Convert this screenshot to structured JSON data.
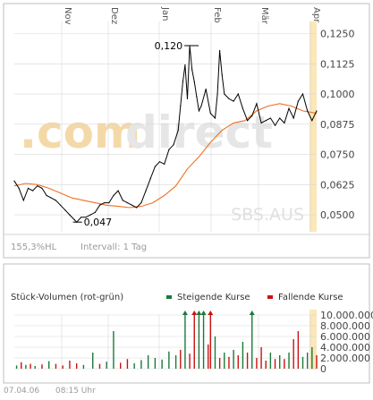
{
  "colors": {
    "price_line": "#000000",
    "avg_line": "#f07020",
    "rising": "#1a7a3a",
    "falling": "#cc1111",
    "highlight_strip": "#fbe7b8",
    "grid": "#d8d8d8",
    "frame": "#bfbfbf",
    "watermark_com": "#f4d9a8",
    "watermark_direct": "#e6e6e6"
  },
  "watermark": {
    "com": ".com",
    "direct": "direct",
    "exchange": "SBS.AUS"
  },
  "footer": {
    "hl_text": "155,3%HL",
    "interval_text": "Intervall: 1 Tag",
    "date": "07.04.06",
    "time": "08:15 Uhr"
  },
  "volume_panel": {
    "title": "Stück-Volumen (rot-grün)",
    "legend_rising": "Steigende Kurse",
    "legend_falling": "Fallende Kurse"
  },
  "chart_data": [
    {
      "type": "line",
      "x_ticks": [
        "Nov",
        "Dez",
        "Jan",
        "Feb",
        "Mär",
        "Apr"
      ],
      "y_ticks": [
        "0,1250",
        "0,1125",
        "0,1000",
        "0,0875",
        "0,0750",
        "0,0625",
        "0,0500"
      ],
      "ylim": [
        0.043,
        0.13
      ],
      "x_index_range": [
        0,
        131
      ],
      "annotations": [
        {
          "label": "0,120",
          "x_index": 76,
          "y": 0.12
        },
        {
          "label": "0,047",
          "x_index": 27,
          "y": 0.047
        }
      ],
      "series": [
        {
          "x_index": [
            0,
            2,
            4,
            6,
            8,
            10,
            12,
            14,
            16,
            18,
            20,
            22,
            24,
            26,
            27,
            29,
            31,
            33,
            35,
            37,
            39,
            41,
            43,
            45,
            47,
            49,
            51,
            53,
            55,
            57,
            59,
            61,
            63,
            65,
            67,
            69,
            71,
            72,
            73,
            74,
            75,
            76,
            77,
            78,
            79,
            80,
            81,
            83,
            85,
            87,
            88,
            89,
            90,
            91,
            93,
            95,
            97,
            99,
            101,
            103,
            105,
            107,
            109,
            111,
            113,
            115,
            117,
            119,
            121,
            123,
            125,
            127,
            129,
            131
          ],
          "values": [
            0.064,
            0.061,
            0.056,
            0.061,
            0.06,
            0.062,
            0.061,
            0.058,
            0.057,
            0.056,
            0.054,
            0.052,
            0.05,
            0.048,
            0.047,
            0.049,
            0.049,
            0.05,
            0.051,
            0.054,
            0.055,
            0.055,
            0.058,
            0.06,
            0.056,
            0.055,
            0.054,
            0.053,
            0.055,
            0.06,
            0.065,
            0.07,
            0.072,
            0.071,
            0.077,
            0.079,
            0.085,
            0.095,
            0.105,
            0.112,
            0.098,
            0.12,
            0.11,
            0.105,
            0.099,
            0.093,
            0.095,
            0.102,
            0.092,
            0.09,
            0.1,
            0.118,
            0.108,
            0.1,
            0.098,
            0.097,
            0.1,
            0.094,
            0.089,
            0.091,
            0.096,
            0.088,
            0.089,
            0.09,
            0.087,
            0.09,
            0.088,
            0.094,
            0.09,
            0.097,
            0.1,
            0.093,
            0.089,
            0.093
          ]
        },
        {
          "x_index": [
            0,
            5,
            10,
            15,
            20,
            25,
            30,
            35,
            40,
            45,
            50,
            55,
            60,
            65,
            70,
            75,
            80,
            85,
            90,
            95,
            100,
            105,
            110,
            115,
            120,
            125,
            131
          ],
          "values": [
            0.062,
            0.063,
            0.0625,
            0.061,
            0.059,
            0.057,
            0.056,
            0.055,
            0.054,
            0.0535,
            0.053,
            0.0535,
            0.055,
            0.058,
            0.062,
            0.069,
            0.074,
            0.08,
            0.085,
            0.088,
            0.089,
            0.093,
            0.095,
            0.096,
            0.095,
            0.093,
            0.092
          ]
        }
      ]
    },
    {
      "type": "bar",
      "y_ticks": [
        "10.000.000",
        "8.000.000",
        "6.000.000",
        "4.000.000",
        "2.000.000",
        "0"
      ],
      "ylim": [
        0,
        10000000
      ],
      "x_index_range": [
        0,
        131
      ],
      "overflow_markers": [
        {
          "x_index": 74,
          "direction": "rising"
        },
        {
          "x_index": 78,
          "direction": "falling"
        },
        {
          "x_index": 80,
          "direction": "rising"
        },
        {
          "x_index": 82,
          "direction": "rising"
        },
        {
          "x_index": 85,
          "direction": "falling"
        },
        {
          "x_index": 103,
          "direction": "rising"
        }
      ],
      "bars": [
        {
          "x_index": 1,
          "value": 600000,
          "direction": "rising"
        },
        {
          "x_index": 3,
          "value": 1200000,
          "direction": "falling"
        },
        {
          "x_index": 5,
          "value": 700000,
          "direction": "rising"
        },
        {
          "x_index": 7,
          "value": 900000,
          "direction": "falling"
        },
        {
          "x_index": 9,
          "value": 500000,
          "direction": "rising"
        },
        {
          "x_index": 12,
          "value": 800000,
          "direction": "falling"
        },
        {
          "x_index": 15,
          "value": 1400000,
          "direction": "rising"
        },
        {
          "x_index": 18,
          "value": 900000,
          "direction": "falling"
        },
        {
          "x_index": 21,
          "value": 600000,
          "direction": "falling"
        },
        {
          "x_index": 24,
          "value": 1500000,
          "direction": "falling"
        },
        {
          "x_index": 27,
          "value": 1000000,
          "direction": "falling"
        },
        {
          "x_index": 30,
          "value": 700000,
          "direction": "rising"
        },
        {
          "x_index": 34,
          "value": 3000000,
          "direction": "rising"
        },
        {
          "x_index": 37,
          "value": 900000,
          "direction": "falling"
        },
        {
          "x_index": 40,
          "value": 1300000,
          "direction": "rising"
        },
        {
          "x_index": 43,
          "value": 7000000,
          "direction": "rising"
        },
        {
          "x_index": 46,
          "value": 1100000,
          "direction": "falling"
        },
        {
          "x_index": 49,
          "value": 1800000,
          "direction": "falling"
        },
        {
          "x_index": 52,
          "value": 1000000,
          "direction": "rising"
        },
        {
          "x_index": 55,
          "value": 1600000,
          "direction": "rising"
        },
        {
          "x_index": 58,
          "value": 2500000,
          "direction": "rising"
        },
        {
          "x_index": 61,
          "value": 2000000,
          "direction": "rising"
        },
        {
          "x_index": 64,
          "value": 1700000,
          "direction": "rising"
        },
        {
          "x_index": 67,
          "value": 3200000,
          "direction": "rising"
        },
        {
          "x_index": 70,
          "value": 2500000,
          "direction": "rising"
        },
        {
          "x_index": 72,
          "value": 3500000,
          "direction": "falling"
        },
        {
          "x_index": 74,
          "value": 10000000,
          "direction": "rising"
        },
        {
          "x_index": 76,
          "value": 2800000,
          "direction": "falling"
        },
        {
          "x_index": 78,
          "value": 10000000,
          "direction": "falling"
        },
        {
          "x_index": 80,
          "value": 10000000,
          "direction": "rising"
        },
        {
          "x_index": 82,
          "value": 10000000,
          "direction": "rising"
        },
        {
          "x_index": 84,
          "value": 4500000,
          "direction": "falling"
        },
        {
          "x_index": 85,
          "value": 10000000,
          "direction": "falling"
        },
        {
          "x_index": 87,
          "value": 6000000,
          "direction": "rising"
        },
        {
          "x_index": 89,
          "value": 2000000,
          "direction": "falling"
        },
        {
          "x_index": 91,
          "value": 3000000,
          "direction": "rising"
        },
        {
          "x_index": 93,
          "value": 2200000,
          "direction": "falling"
        },
        {
          "x_index": 95,
          "value": 3500000,
          "direction": "rising"
        },
        {
          "x_index": 97,
          "value": 2500000,
          "direction": "falling"
        },
        {
          "x_index": 99,
          "value": 5000000,
          "direction": "rising"
        },
        {
          "x_index": 101,
          "value": 3000000,
          "direction": "falling"
        },
        {
          "x_index": 103,
          "value": 10000000,
          "direction": "rising"
        },
        {
          "x_index": 105,
          "value": 2000000,
          "direction": "falling"
        },
        {
          "x_index": 107,
          "value": 4000000,
          "direction": "falling"
        },
        {
          "x_index": 109,
          "value": 1500000,
          "direction": "falling"
        },
        {
          "x_index": 111,
          "value": 3000000,
          "direction": "rising"
        },
        {
          "x_index": 113,
          "value": 1800000,
          "direction": "falling"
        },
        {
          "x_index": 115,
          "value": 2500000,
          "direction": "rising"
        },
        {
          "x_index": 117,
          "value": 1800000,
          "direction": "falling"
        },
        {
          "x_index": 119,
          "value": 3000000,
          "direction": "rising"
        },
        {
          "x_index": 121,
          "value": 5500000,
          "direction": "falling"
        },
        {
          "x_index": 123,
          "value": 7000000,
          "direction": "falling"
        },
        {
          "x_index": 125,
          "value": 2200000,
          "direction": "rising"
        },
        {
          "x_index": 127,
          "value": 3000000,
          "direction": "rising"
        },
        {
          "x_index": 129,
          "value": 4000000,
          "direction": "rising"
        },
        {
          "x_index": 131,
          "value": 2500000,
          "direction": "falling"
        }
      ]
    }
  ]
}
